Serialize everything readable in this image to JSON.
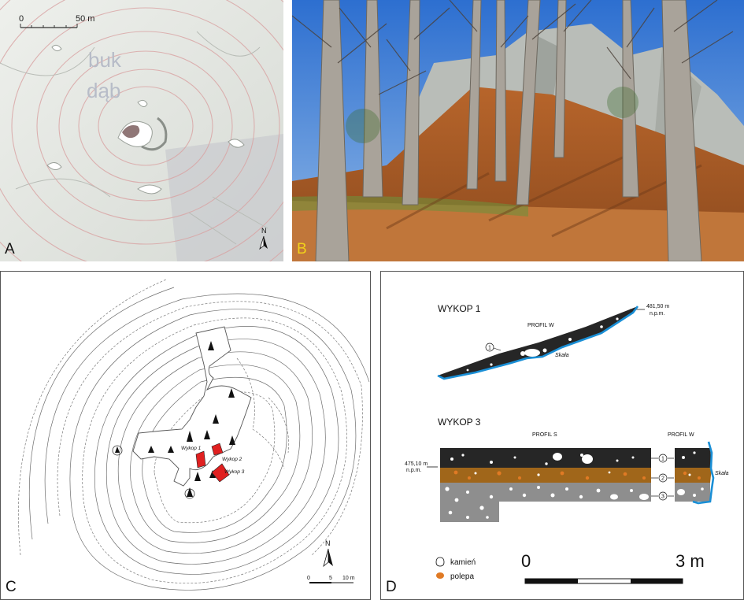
{
  "panels": {
    "a": {
      "label": "A",
      "scale_zero": "0",
      "scale_end": "50 m",
      "overlay_word_1": "buk",
      "overlay_word_2": "dąb",
      "north": "N"
    },
    "b": {
      "label": "B"
    },
    "c": {
      "label": "C",
      "trench_1": "Wykop 1",
      "trench_2": "Wykop 2",
      "trench_3": "Wykop 3",
      "north": "N",
      "scale_zero": "0",
      "scale_mid": "5",
      "scale_end": "10 m"
    },
    "d": {
      "label": "D",
      "trench1_title": "WYKOP 1",
      "trench1_profile": "PROFIL W",
      "trench1_elev": "481,50 m",
      "trench1_elev_unit": "n.p.m.",
      "trench1_layer": "1",
      "trench1_rock": "Skała",
      "trench3_title": "WYKOP 3",
      "trench3_profile_s": "PROFIL S",
      "trench3_profile_w": "PROFIL W",
      "trench3_elev": "475,10 m",
      "trench3_elev_unit": "n.p.m.",
      "trench3_layers": [
        "1",
        "2",
        "3"
      ],
      "trench3_rock": "Skała",
      "legend_stone": "kamień",
      "legend_clay": "polepa",
      "scale_zero": "0",
      "scale_end": "3 m"
    }
  },
  "colors": {
    "topsoil": "#262626",
    "polepa": "#e07a24",
    "brown_layer": "#a0661a",
    "grey_layer": "#8e8e8e",
    "rock_line": "#1a8fd6",
    "trench_red": "#e02020",
    "label_yellow": "#f2d21a"
  }
}
